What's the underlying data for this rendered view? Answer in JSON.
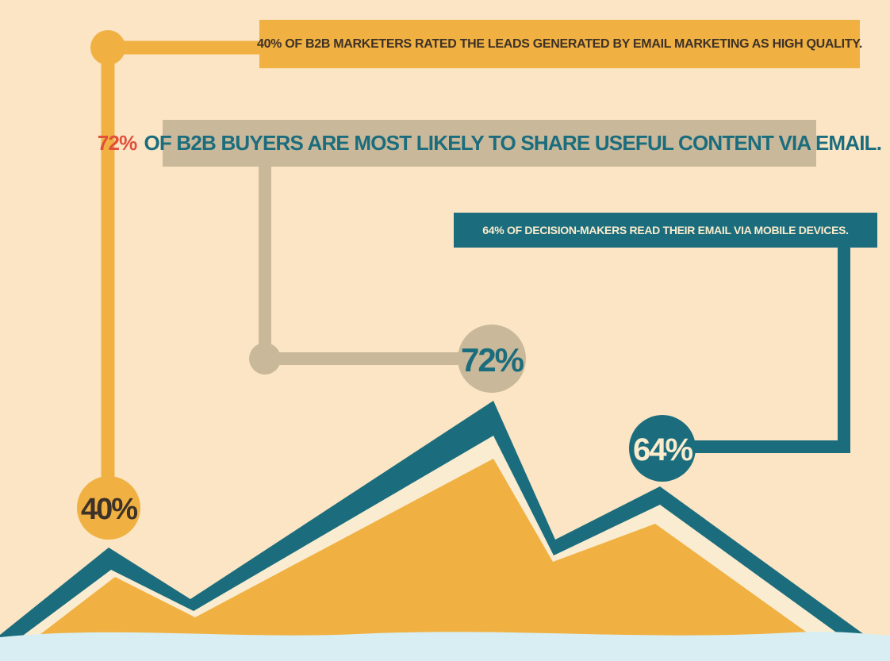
{
  "stats": [
    {
      "value": "40%",
      "statement": "40% of B2B marketers rated the leads generated by email marketing as high quality.",
      "color": "#f0b142",
      "text_color": "#3d3128"
    },
    {
      "value": "72%",
      "highlight": "72%",
      "statement": "of B2B buyers are most likely to share useful content via email.",
      "color": "#c9b89a",
      "text_color": "#1b6d7d",
      "highlight_color": "#e0503a"
    },
    {
      "value": "64%",
      "statement": "64% of decision-makers read their email via mobile devices.",
      "color": "#1b6d7d",
      "text_color": "#fbeccd"
    }
  ],
  "palette": {
    "background": "#fbe5c4",
    "mountain_fill": "#f0b142",
    "mountain_edge": "#1b6d7d",
    "snow": "#faecd0",
    "ground": "#d8eef2"
  },
  "icons": [
    "mountain-range-graphic"
  ]
}
